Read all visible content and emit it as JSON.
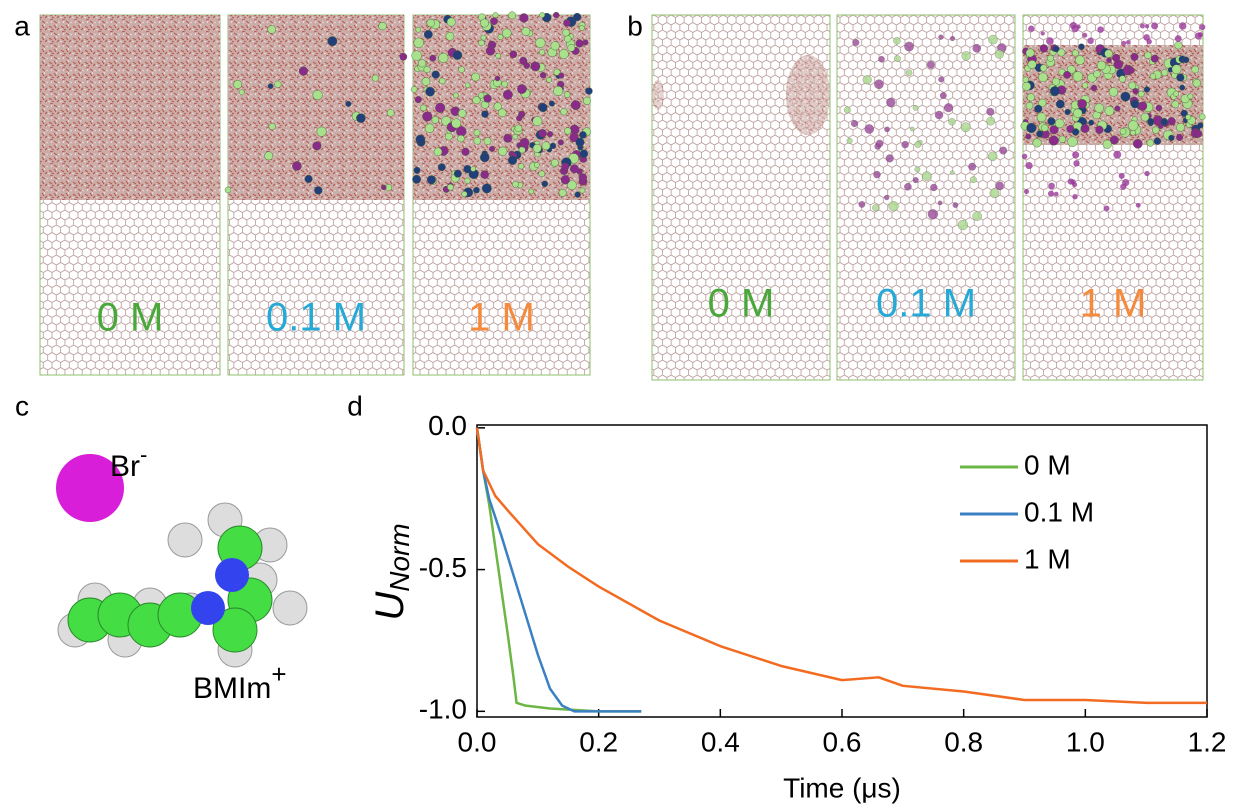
{
  "panels": {
    "a": {
      "label": "a",
      "images": [
        {
          "label": "0 M",
          "color": "#4aa83a"
        },
        {
          "label": "0.1 M",
          "color": "#27a9d6"
        },
        {
          "label": "1 M",
          "color": "#f38a3c"
        }
      ]
    },
    "b": {
      "label": "b",
      "images": [
        {
          "label": "0 M",
          "color": "#4aa83a"
        },
        {
          "label": "0.1 M",
          "color": "#27a9d6"
        },
        {
          "label": "1 M",
          "color": "#f38a3c"
        }
      ]
    },
    "c": {
      "label": "c",
      "anion": "Br",
      "anion_charge": "-",
      "cation": "BMIm",
      "cation_charge": "+"
    },
    "d": {
      "label": "d"
    }
  },
  "chart_data": {
    "type": "line",
    "ylabel": "U",
    "ylabel_sub": "Norm",
    "xlabel": "Time (μs)",
    "xlim": [
      0,
      1.2
    ],
    "ylim": [
      -1.02,
      0.01
    ],
    "xticks": [
      {
        "value": 0,
        "label": "0.0"
      },
      {
        "value": 0.2,
        "label": "0.2"
      },
      {
        "value": 0.4,
        "label": "0.4"
      },
      {
        "value": 0.6,
        "label": "0.6"
      },
      {
        "value": 0.8,
        "label": "0.8"
      },
      {
        "value": 1,
        "label": "1.0"
      },
      {
        "value": 1.2,
        "label": "1.2"
      }
    ],
    "yticks": [
      {
        "value": 0,
        "label": "0.0"
      },
      {
        "value": -0.5,
        "label": "-0.5"
      },
      {
        "value": -1,
        "label": "-1.0"
      }
    ],
    "legend": "upper right",
    "series": [
      {
        "name": "0 M",
        "color": "#6cb644",
        "x": [
          0,
          0.01,
          0.02,
          0.03,
          0.04,
          0.05,
          0.06,
          0.065,
          0.08,
          0.12,
          0.2,
          0.27
        ],
        "values": [
          0,
          -0.15,
          -0.27,
          -0.42,
          -0.57,
          -0.72,
          -0.88,
          -0.97,
          -0.98,
          -0.99,
          -1,
          -1
        ]
      },
      {
        "name": "0.1 M",
        "color": "#3b80c3",
        "x": [
          0,
          0.01,
          0.02,
          0.04,
          0.06,
          0.08,
          0.1,
          0.12,
          0.14,
          0.16,
          0.2,
          0.27
        ],
        "values": [
          0,
          -0.15,
          -0.25,
          -0.38,
          -0.52,
          -0.66,
          -0.8,
          -0.92,
          -0.98,
          -1,
          -1,
          -1
        ]
      },
      {
        "name": "1 M",
        "color": "#f26b21",
        "x": [
          0,
          0.01,
          0.03,
          0.05,
          0.1,
          0.15,
          0.2,
          0.3,
          0.4,
          0.5,
          0.6,
          0.66,
          0.7,
          0.8,
          0.9,
          1,
          1.1,
          1.2
        ],
        "values": [
          0,
          -0.15,
          -0.24,
          -0.29,
          -0.41,
          -0.49,
          -0.56,
          -0.68,
          -0.77,
          -0.84,
          -0.89,
          -0.88,
          -0.91,
          -0.93,
          -0.96,
          -0.96,
          -0.97,
          -0.97
        ]
      }
    ]
  }
}
